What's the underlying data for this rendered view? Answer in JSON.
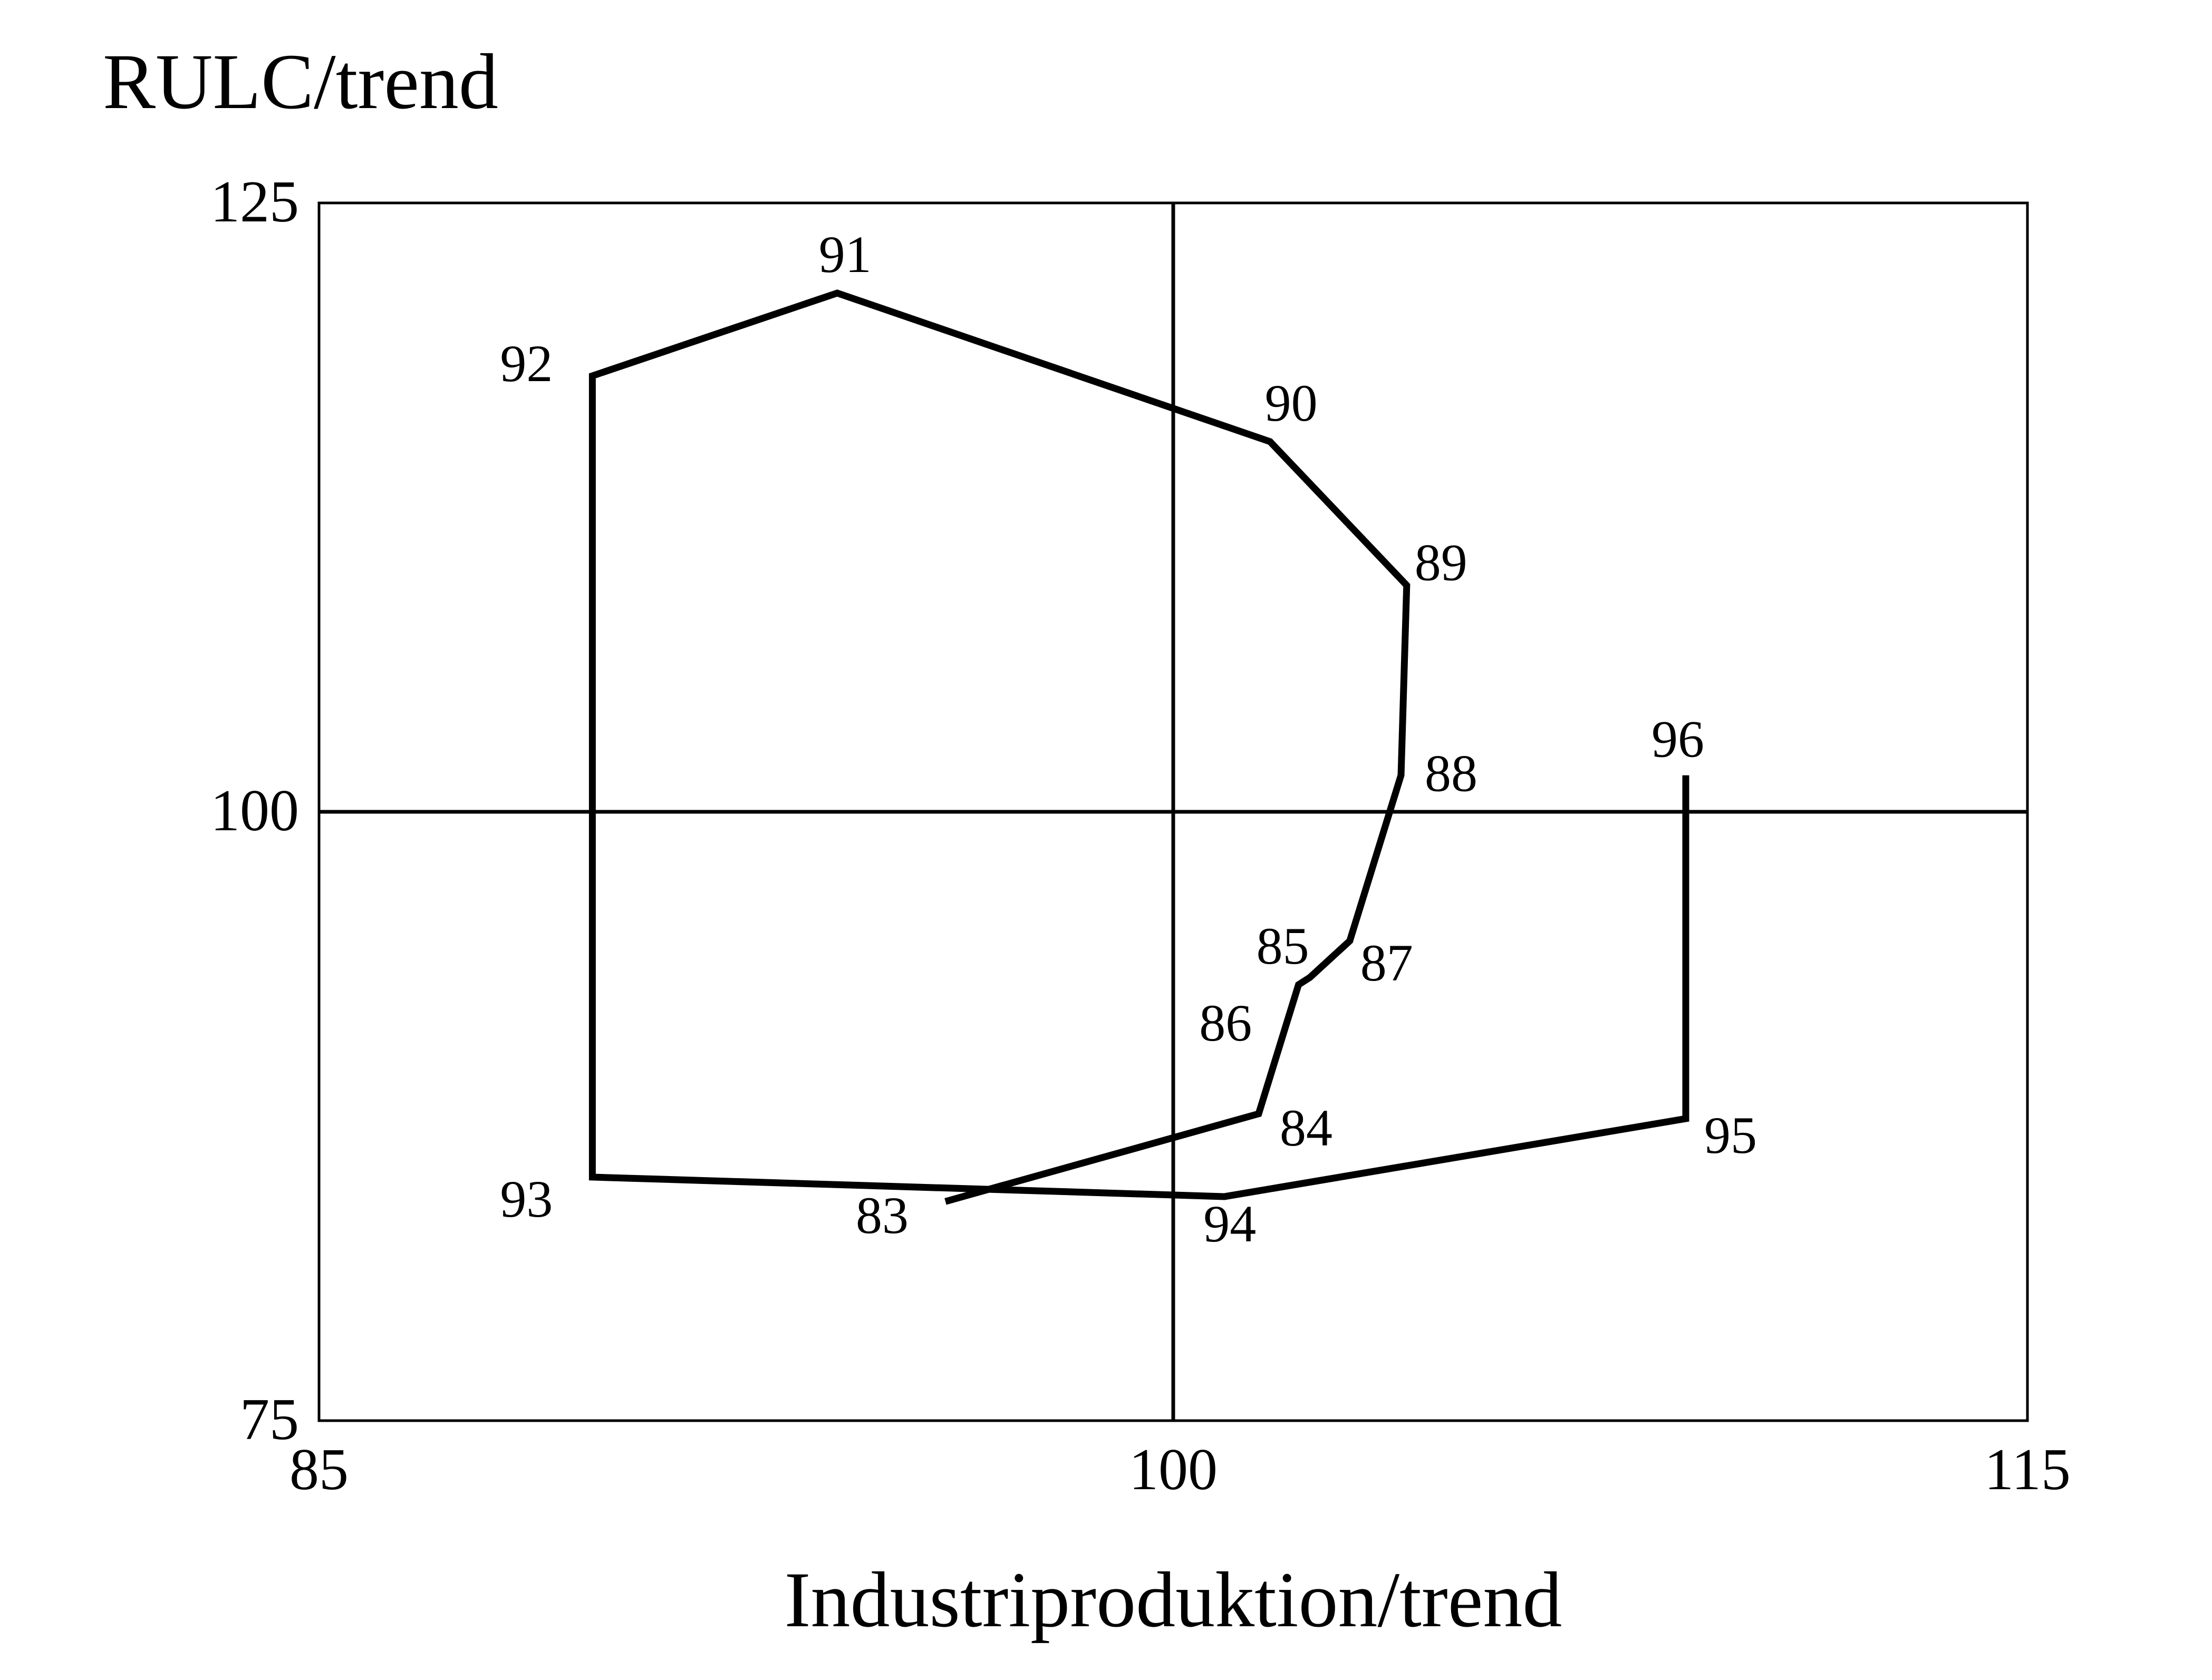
{
  "chart_data": {
    "type": "line",
    "title": "",
    "xlabel": "Industriproduktion/trend",
    "ylabel": "RULC/trend",
    "xlim": [
      85,
      115
    ],
    "ylim": [
      75,
      125
    ],
    "x_ticks": [
      {
        "value": 85,
        "label": "85"
      },
      {
        "value": 100,
        "label": "100"
      },
      {
        "value": 115,
        "label": "115"
      }
    ],
    "y_ticks": [
      {
        "value": 75,
        "label": "75"
      },
      {
        "value": 100,
        "label": "100"
      },
      {
        "value": 125,
        "label": "125"
      }
    ],
    "reference_lines": {
      "x": 100,
      "y": 100
    },
    "grid": false,
    "legend": "none",
    "line_color": "#000000",
    "series": [
      {
        "points": [
          {
            "label": "83",
            "x": 96.0,
            "y": 84.0
          },
          {
            "label": "84",
            "x": 101.5,
            "y": 87.6
          },
          {
            "label": "85",
            "x": 102.2,
            "y": 92.9
          },
          {
            "label": "86",
            "x": 102.4,
            "y": 93.2
          },
          {
            "label": "87",
            "x": 103.1,
            "y": 94.7
          },
          {
            "label": "88",
            "x": 104.0,
            "y": 101.5
          },
          {
            "label": "89",
            "x": 104.1,
            "y": 109.3
          },
          {
            "label": "90",
            "x": 101.7,
            "y": 115.2
          },
          {
            "label": "91",
            "x": 94.1,
            "y": 121.3
          },
          {
            "label": "92",
            "x": 89.8,
            "y": 117.9
          },
          {
            "label": "93",
            "x": 89.8,
            "y": 85.0
          },
          {
            "label": "94",
            "x": 100.9,
            "y": 84.2
          },
          {
            "label": "95",
            "x": 109.0,
            "y": 87.4
          },
          {
            "label": "96",
            "x": 109.0,
            "y": 101.5
          }
        ]
      }
    ]
  }
}
